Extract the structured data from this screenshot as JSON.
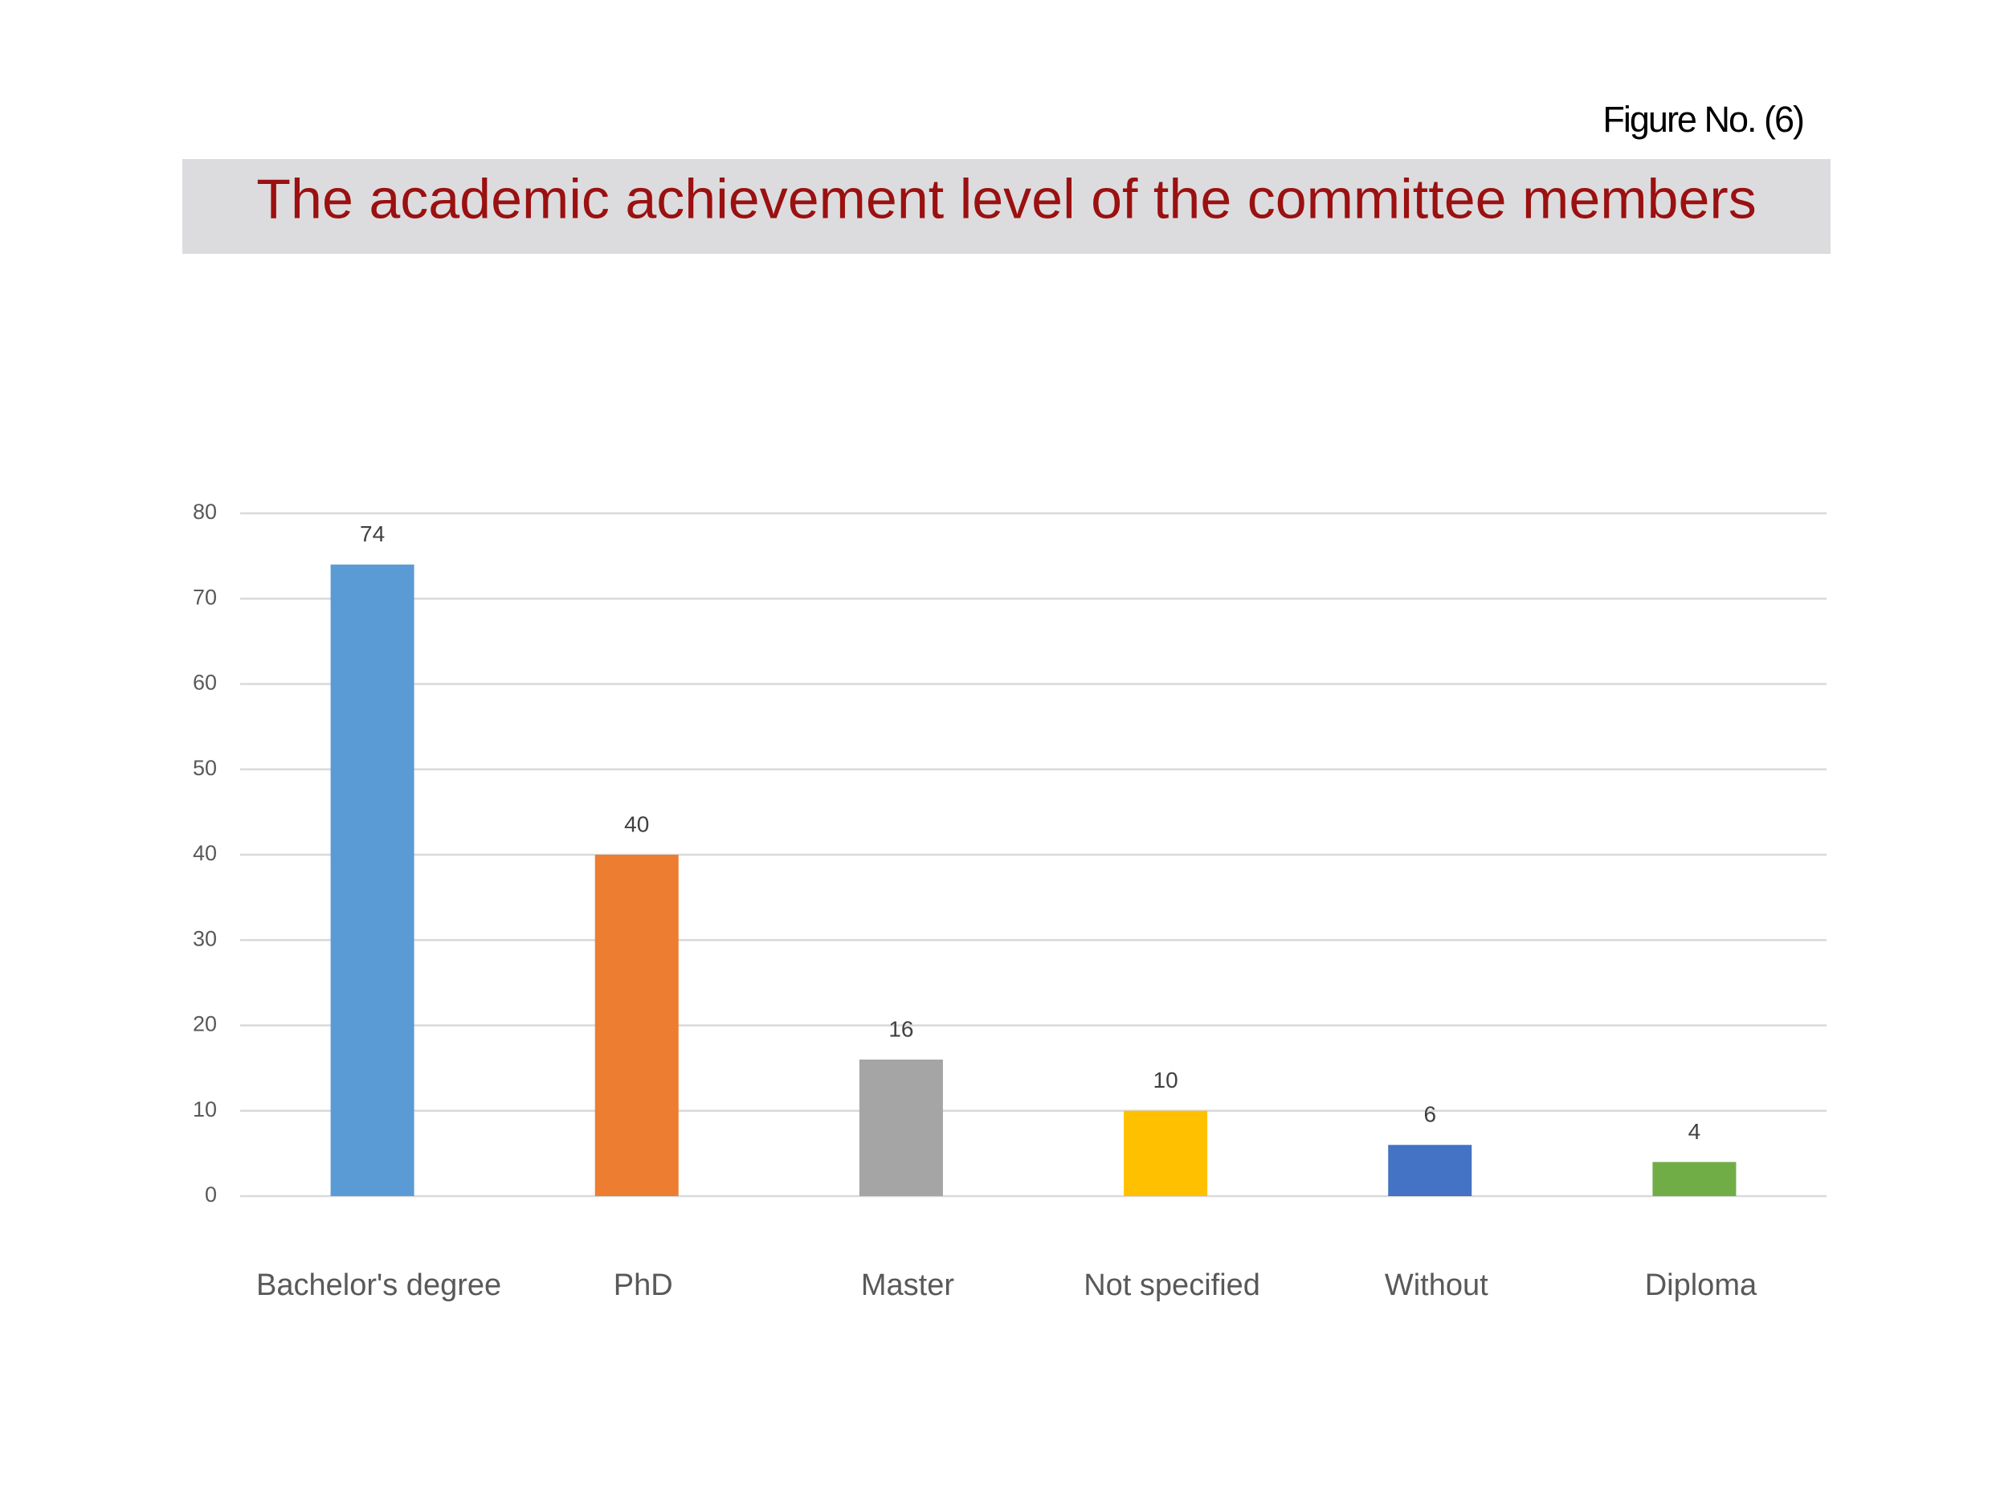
{
  "chart_data": {
    "type": "bar",
    "figure_label": "Figure No. (6)",
    "title": "The academic achievement level of the committee members",
    "categories": [
      "Bachelor's degree",
      "PhD",
      "Master",
      "Not specified",
      "Without",
      "Diploma"
    ],
    "values": [
      74,
      40,
      16,
      10,
      6,
      4
    ],
    "colors": [
      "#5b9bd5",
      "#ed7d31",
      "#a5a5a5",
      "#ffc000",
      "#4472c4",
      "#70ad47"
    ],
    "ylim": [
      0,
      80
    ],
    "yticks": [
      0,
      10,
      20,
      30,
      40,
      50,
      60,
      70,
      80
    ],
    "grid": true
  }
}
